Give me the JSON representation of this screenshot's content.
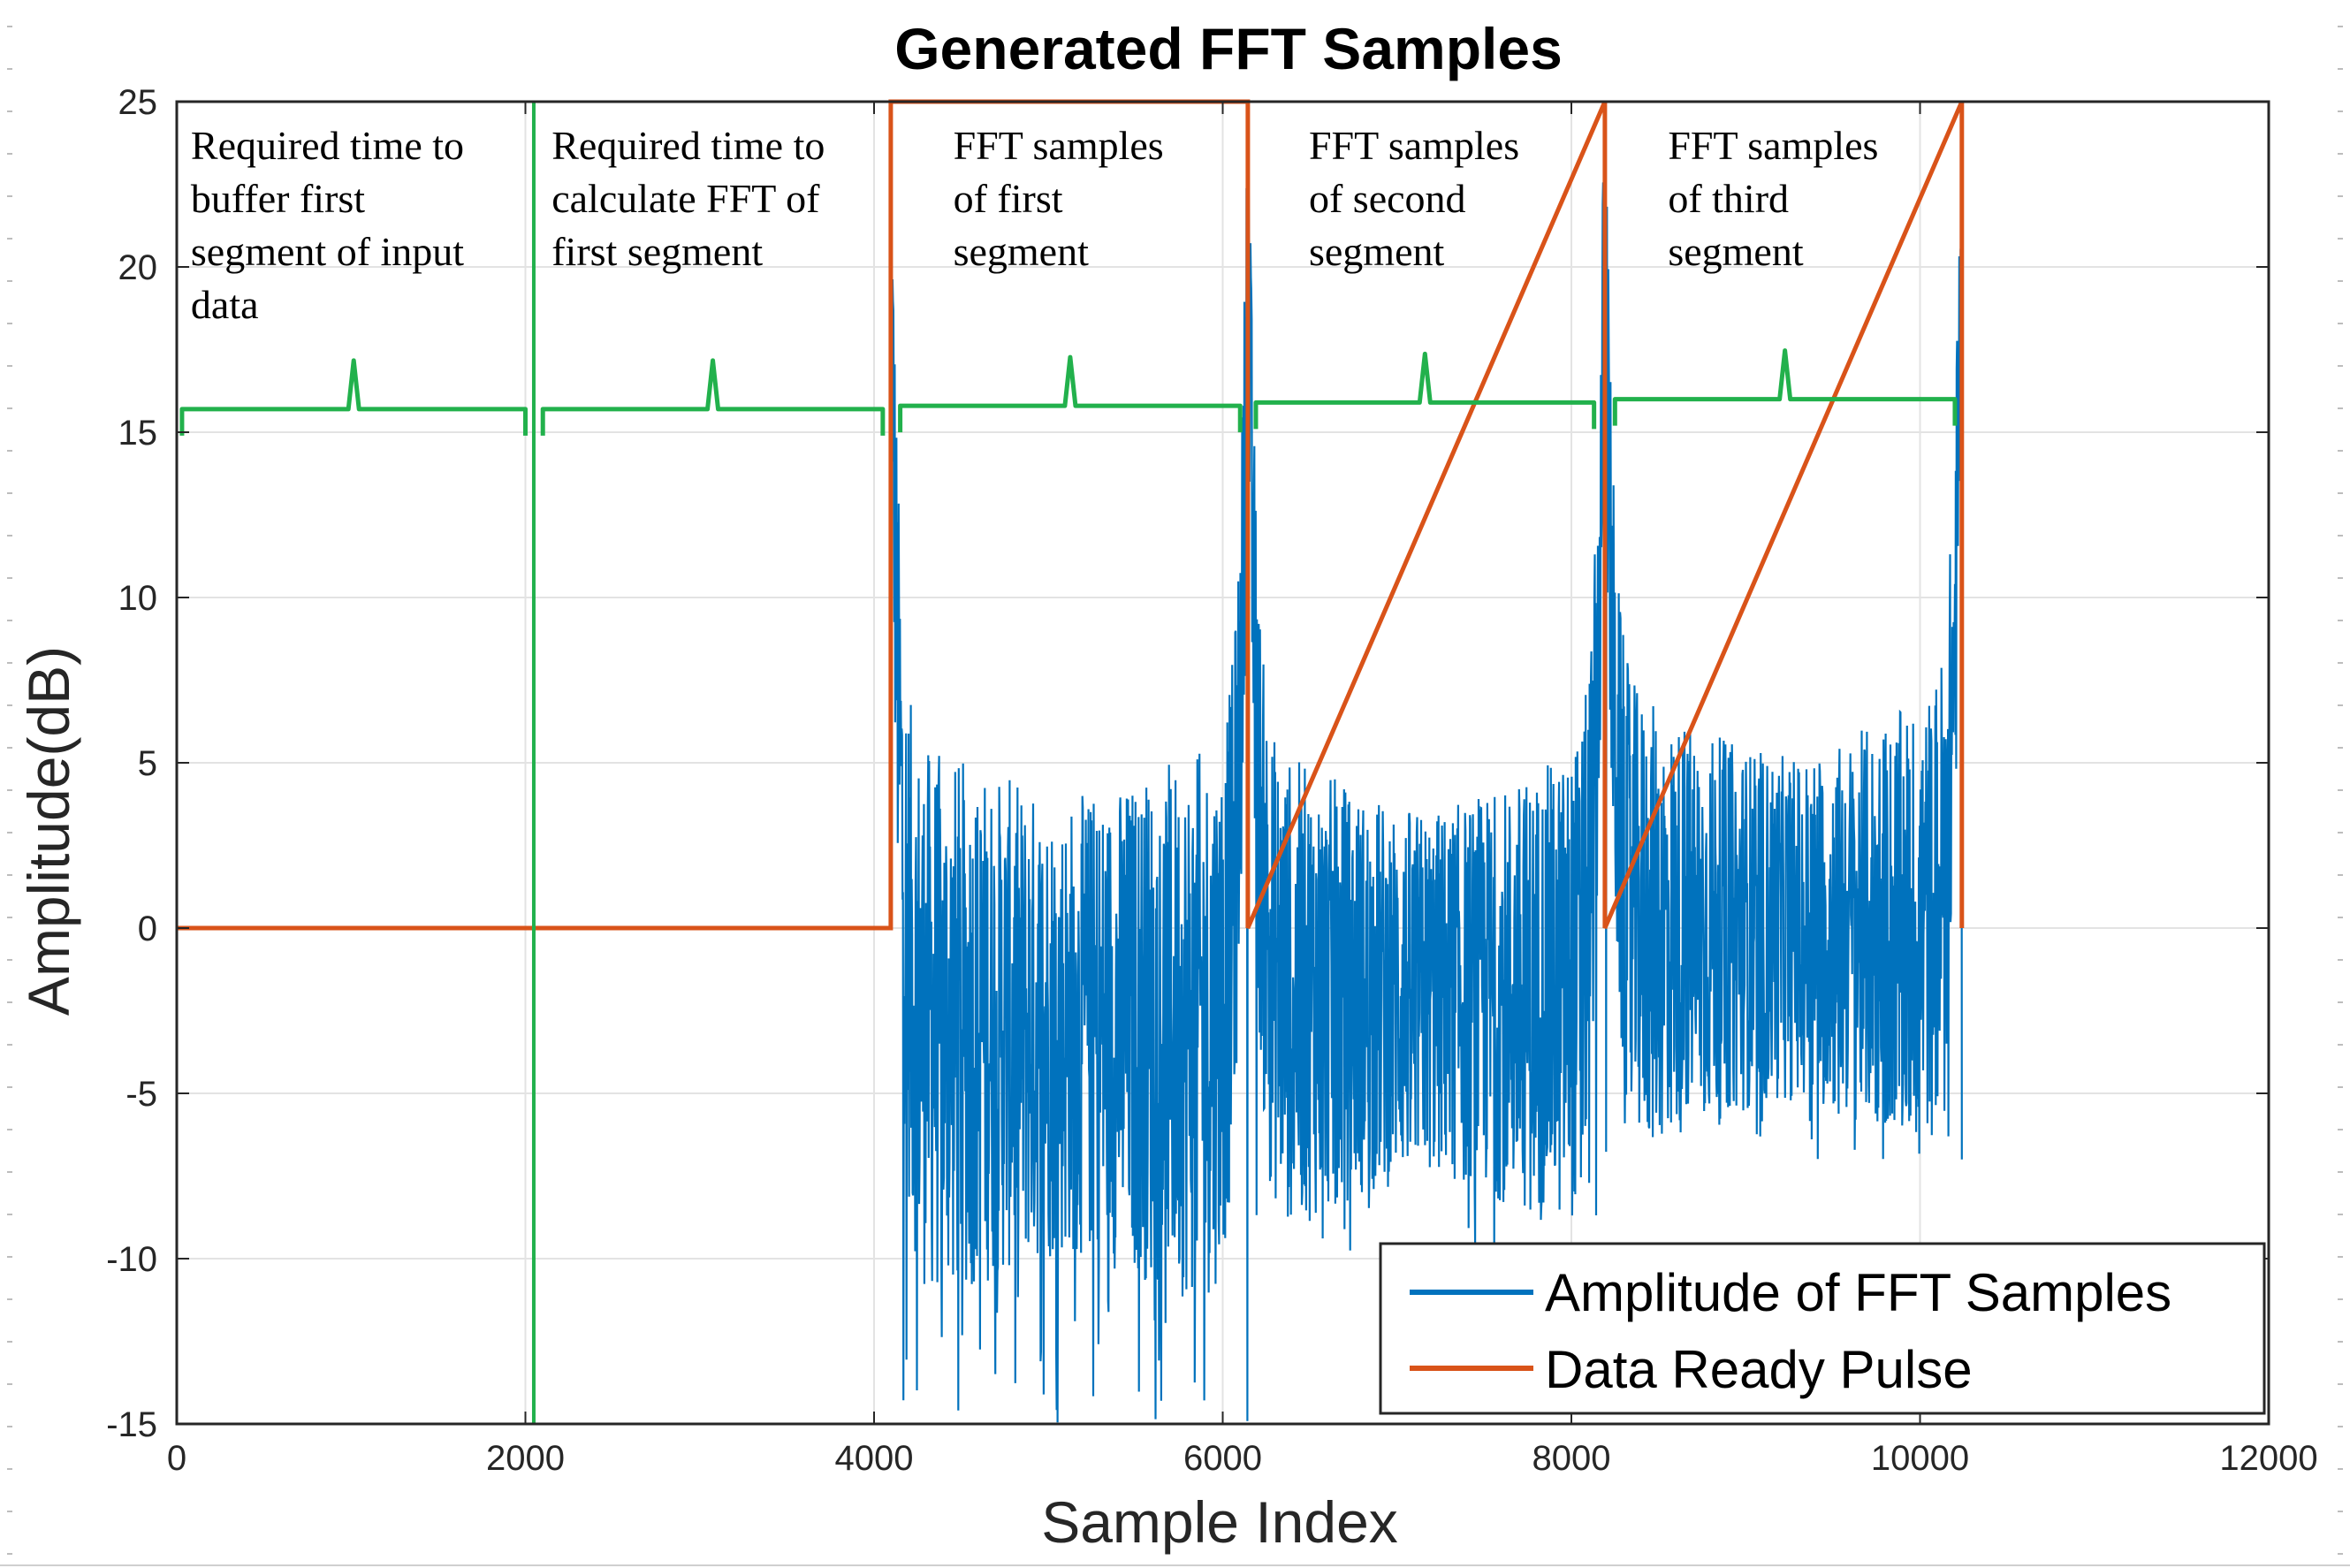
{
  "chart_data": {
    "type": "line",
    "title": "Generated FFT Samples",
    "xlabel": "Sample Index",
    "ylabel": "Amplitude(dB)",
    "xlim": [
      0,
      12000
    ],
    "ylim": [
      -15,
      25
    ],
    "xticks": [
      0,
      2000,
      4000,
      6000,
      8000,
      10000,
      12000
    ],
    "xtick_labels": [
      "0",
      "2000",
      "4000",
      "6000",
      "8000",
      "10000",
      "12000"
    ],
    "yticks": [
      -15,
      -10,
      -5,
      0,
      5,
      10,
      15,
      20,
      25
    ],
    "ytick_labels": [
      "-15",
      "-10",
      "-5",
      "0",
      "5",
      "10",
      "15",
      "20",
      "25"
    ],
    "grid": true,
    "legend_position": "bottom-right",
    "series": [
      {
        "name": "Amplitude of FFT Samples",
        "color": "#0072BD",
        "segments": [
          {
            "start": 4096,
            "end": 6144,
            "edge_peak_db": 22,
            "floor_min_db": -15,
            "floor_mean_db": -3
          },
          {
            "start": 6144,
            "end": 8192,
            "edge_peak_db": 22,
            "floor_min_db": -10,
            "floor_mean_db": -2
          },
          {
            "start": 8192,
            "end": 10240,
            "edge_peak_db": 22,
            "floor_min_db": -7,
            "floor_mean_db": 0
          }
        ]
      },
      {
        "name": "Data Ready Pulse",
        "color": "#D95319",
        "x": [
          0,
          4096,
          4096,
          6144,
          6144,
          8192,
          8192,
          10240,
          10240
        ],
        "y": [
          0,
          0,
          25,
          25,
          0,
          25,
          0,
          25,
          0
        ]
      }
    ],
    "markers": {
      "color": "#22B14C",
      "vertical_line_x": 2048
    },
    "annotations": [
      {
        "lines": [
          "Required time to",
          "buffer first",
          "segment of input",
          "data"
        ],
        "x_start": 30,
        "x_end": 2000,
        "bracket_y": 15.7
      },
      {
        "lines": [
          "Required time to",
          "calculate FFT of",
          "first segment"
        ],
        "x_start": 2100,
        "x_end": 4050,
        "bracket_y": 15.7
      },
      {
        "lines": [
          "FFT samples",
          "of first",
          "segment"
        ],
        "x_start": 4150,
        "x_end": 6100,
        "bracket_y": 15.8
      },
      {
        "lines": [
          "FFT samples",
          "of second",
          "segment"
        ],
        "x_start": 6190,
        "x_end": 8130,
        "bracket_y": 15.9
      },
      {
        "lines": [
          "FFT samples",
          "of third",
          "segment"
        ],
        "x_start": 8250,
        "x_end": 10200,
        "bracket_y": 16.0
      }
    ]
  }
}
